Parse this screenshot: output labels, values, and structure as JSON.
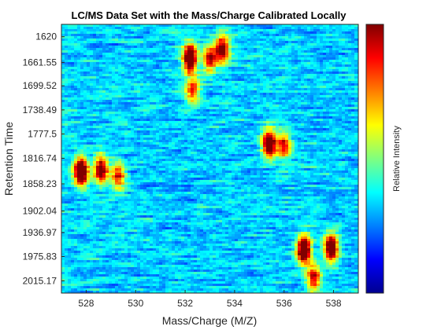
{
  "chart_data": {
    "type": "heatmap",
    "title": "LC/MS Data Set with the Mass/Charge Calibrated Locally",
    "xlabel": "Mass/Charge (M/Z)",
    "ylabel": "Retention Time",
    "colorbar_label": "Relative Intensity",
    "colormap": "jet",
    "xlim": [
      527,
      539
    ],
    "x_ticks": [
      528,
      530,
      532,
      534,
      536,
      538
    ],
    "y_ticks": [
      "1620",
      "1661.55",
      "1699.52",
      "1738.49",
      "1777.5",
      "1816.74",
      "1858.23",
      "1902.04",
      "1936.97",
      "1975.83",
      "2015.17"
    ],
    "y_range_top_to_bottom": [
      "1600",
      "2035"
    ],
    "grid": false,
    "peaks": [
      {
        "mz": 532.2,
        "rt": 1655,
        "intensity": 1.0
      },
      {
        "mz": 532.3,
        "rt": 1708,
        "intensity": 0.5
      },
      {
        "mz": 533.0,
        "rt": 1655,
        "intensity": 0.6
      },
      {
        "mz": 533.5,
        "rt": 1640,
        "intensity": 0.75
      },
      {
        "mz": 535.4,
        "rt": 1793,
        "intensity": 0.85
      },
      {
        "mz": 536.0,
        "rt": 1795,
        "intensity": 0.55
      },
      {
        "mz": 527.8,
        "rt": 1838,
        "intensity": 1.0
      },
      {
        "mz": 528.6,
        "rt": 1835,
        "intensity": 0.8
      },
      {
        "mz": 529.3,
        "rt": 1845,
        "intensity": 0.55
      },
      {
        "mz": 536.8,
        "rt": 1965,
        "intensity": 1.0
      },
      {
        "mz": 537.9,
        "rt": 1962,
        "intensity": 0.9
      },
      {
        "mz": 537.2,
        "rt": 2010,
        "intensity": 0.6
      }
    ]
  }
}
